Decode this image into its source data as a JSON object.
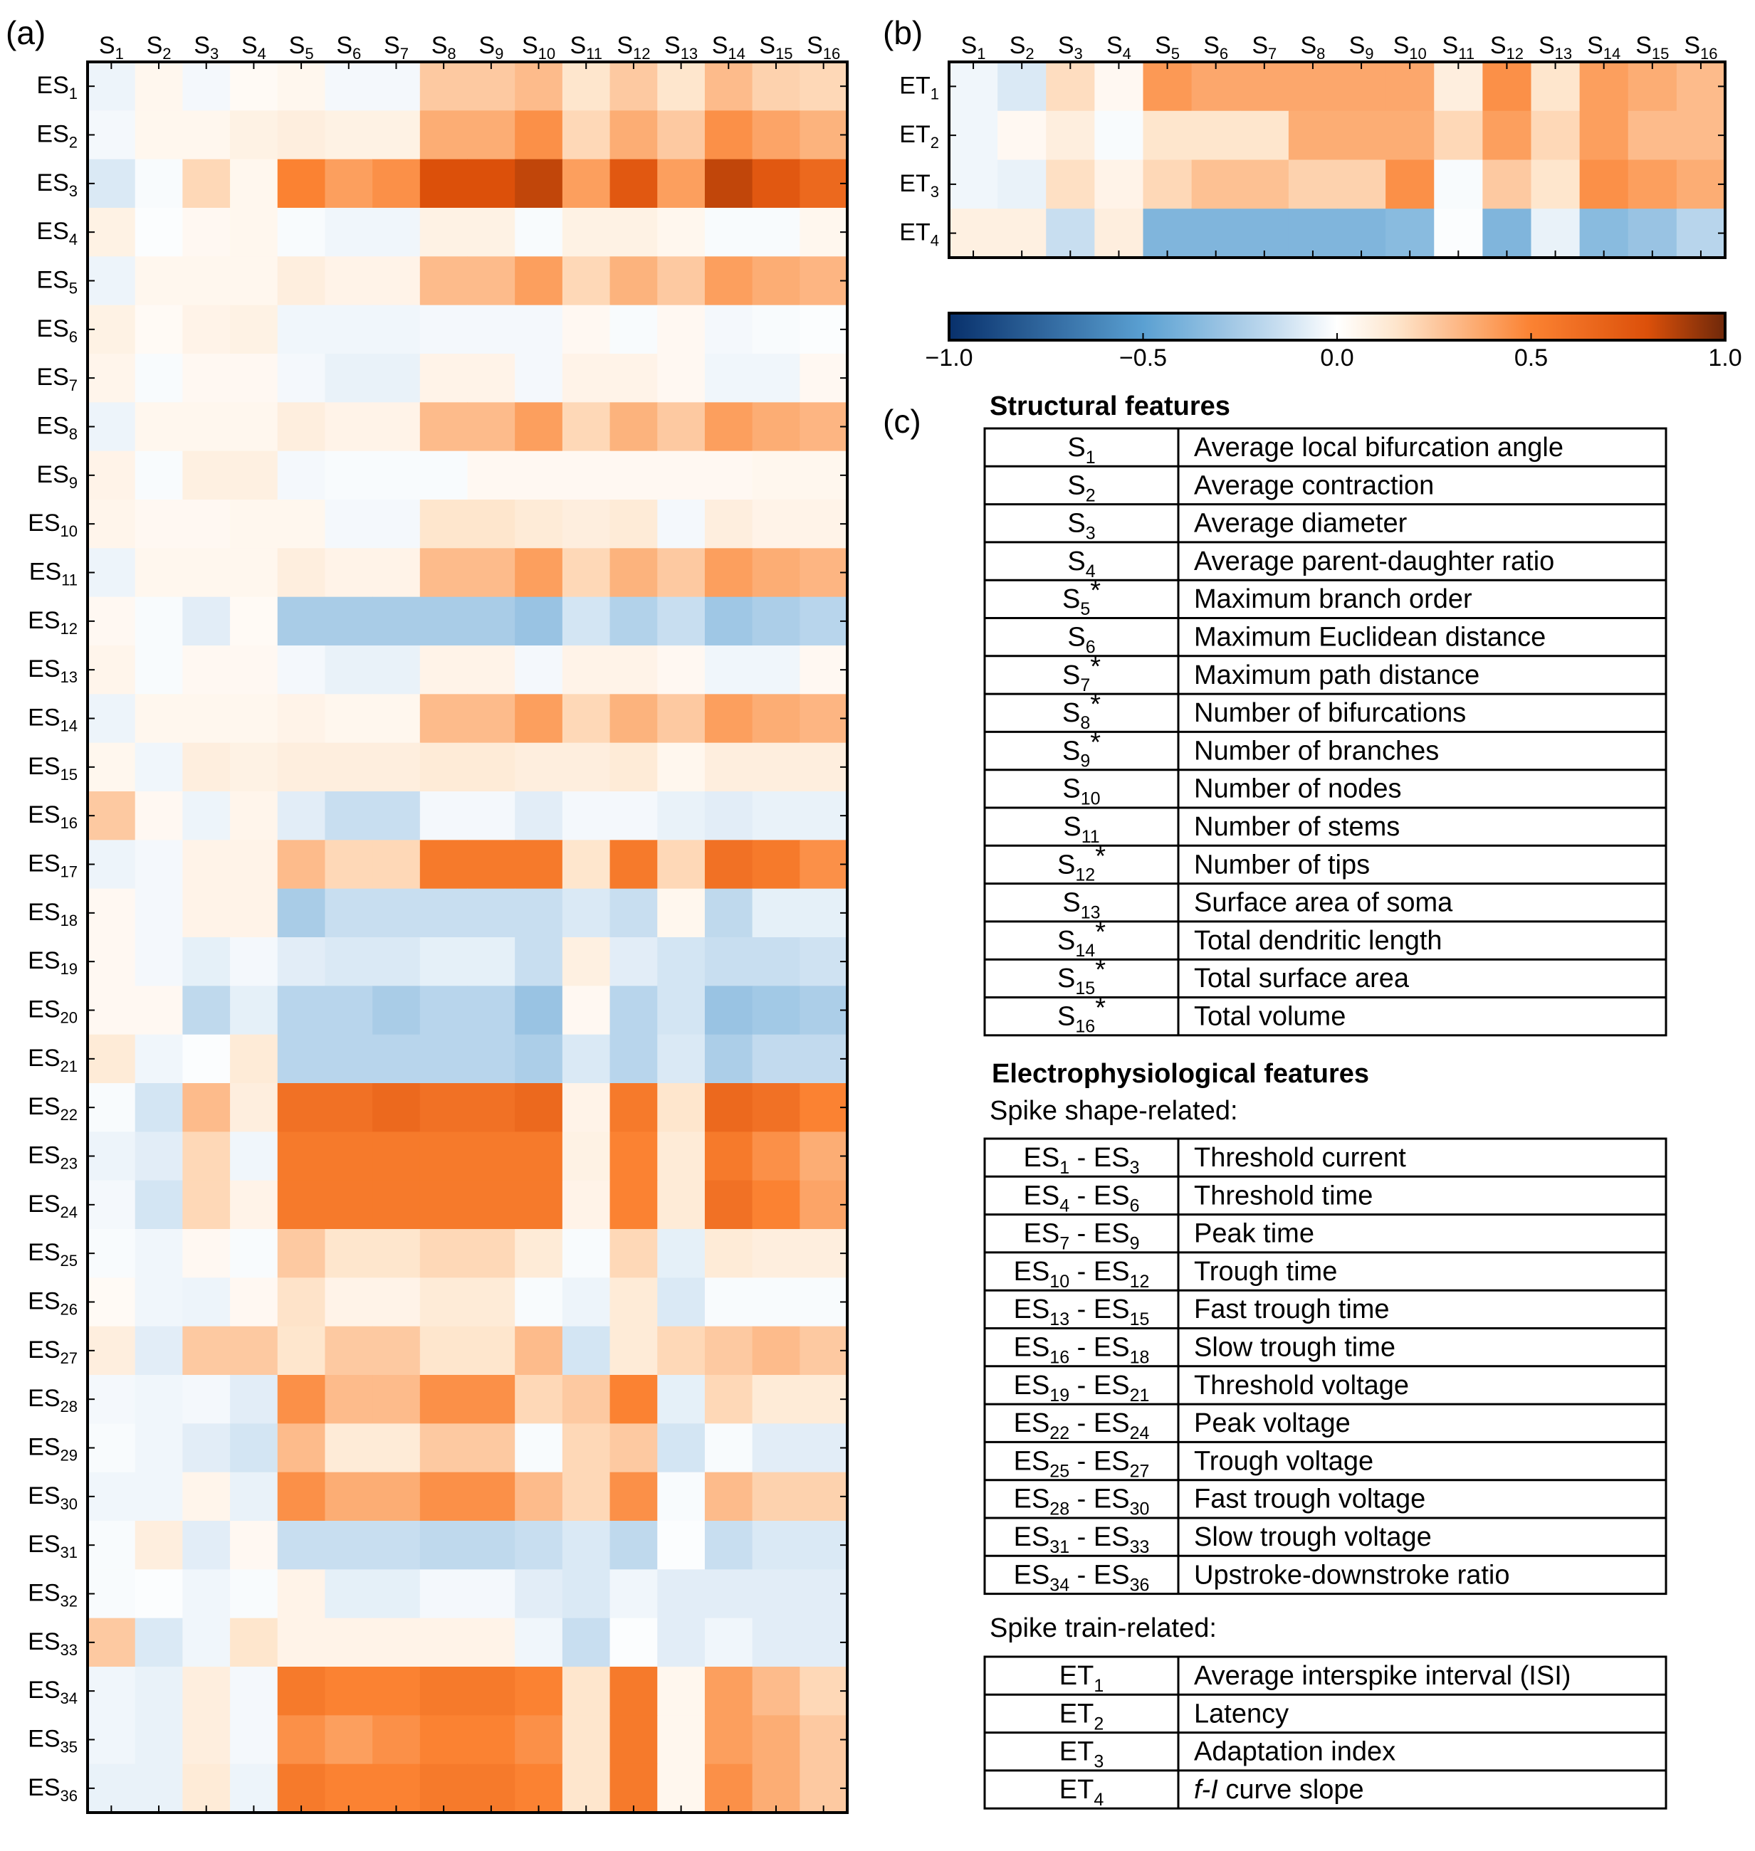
{
  "panels": {
    "a": "(a)",
    "b": "(b)",
    "c": "(c)"
  },
  "chart_data": [
    {
      "type": "heatmap",
      "panel": "(a)",
      "title": "",
      "x_prefix": "S",
      "y_prefix": "ES",
      "x_categories": [
        "S1",
        "S2",
        "S3",
        "S4",
        "S5",
        "S6",
        "S7",
        "S8",
        "S9",
        "S10",
        "S11",
        "S12",
        "S13",
        "S14",
        "S15",
        "S16"
      ],
      "y_categories": [
        "ES1",
        "ES2",
        "ES3",
        "ES4",
        "ES5",
        "ES6",
        "ES7",
        "ES8",
        "ES9",
        "ES10",
        "ES11",
        "ES12",
        "ES13",
        "ES14",
        "ES15",
        "ES16",
        "ES17",
        "ES18",
        "ES19",
        "ES20",
        "ES21",
        "ES22",
        "ES23",
        "ES24",
        "ES25",
        "ES26",
        "ES27",
        "ES28",
        "ES29",
        "ES30",
        "ES31",
        "ES32",
        "ES33",
        "ES34",
        "ES35",
        "ES36"
      ],
      "colormap": "diverging blue-white-orange",
      "value_range": [
        -1.0,
        1.0
      ],
      "values": [
        [
          -0.05,
          0.05,
          -0.03,
          0.03,
          0.05,
          -0.03,
          -0.03,
          0.25,
          0.25,
          0.3,
          0.15,
          0.25,
          0.15,
          0.3,
          0.22,
          0.2
        ],
        [
          -0.03,
          0.05,
          0.05,
          0.08,
          0.1,
          0.08,
          0.08,
          0.35,
          0.35,
          0.45,
          0.2,
          0.35,
          0.25,
          0.45,
          0.38,
          0.33
        ],
        [
          -0.1,
          -0.02,
          0.2,
          0.05,
          0.5,
          0.4,
          0.45,
          0.8,
          0.8,
          0.85,
          0.4,
          0.75,
          0.4,
          0.85,
          0.75,
          0.65
        ],
        [
          0.08,
          -0.01,
          0.04,
          0.05,
          -0.02,
          -0.04,
          -0.04,
          0.08,
          0.08,
          -0.02,
          0.08,
          0.08,
          0.05,
          -0.02,
          -0.02,
          0.05
        ],
        [
          -0.05,
          0.05,
          0.05,
          0.05,
          0.1,
          0.07,
          0.07,
          0.3,
          0.3,
          0.4,
          0.2,
          0.33,
          0.25,
          0.4,
          0.35,
          0.32
        ],
        [
          0.08,
          0.03,
          0.07,
          0.08,
          -0.04,
          -0.04,
          -0.04,
          -0.03,
          -0.03,
          -0.03,
          0.04,
          -0.02,
          0.04,
          -0.03,
          -0.02,
          -0.01
        ],
        [
          0.06,
          -0.02,
          0.04,
          0.04,
          -0.03,
          -0.06,
          -0.06,
          0.07,
          0.07,
          -0.03,
          0.07,
          0.07,
          0.04,
          -0.04,
          -0.04,
          0.04
        ],
        [
          -0.05,
          0.05,
          0.05,
          0.05,
          0.1,
          0.07,
          0.07,
          0.3,
          0.3,
          0.4,
          0.2,
          0.33,
          0.25,
          0.4,
          0.35,
          0.32
        ],
        [
          0.07,
          -0.02,
          0.09,
          0.09,
          -0.03,
          -0.02,
          -0.02,
          -0.02,
          0.04,
          0.04,
          0.04,
          0.04,
          0.04,
          0.04,
          0.05,
          0.05
        ],
        [
          0.06,
          0.04,
          0.04,
          0.05,
          0.05,
          -0.03,
          -0.03,
          0.15,
          0.15,
          0.12,
          0.1,
          0.12,
          -0.03,
          0.1,
          0.07,
          0.07
        ],
        [
          -0.05,
          0.05,
          0.05,
          0.05,
          0.1,
          0.07,
          0.07,
          0.3,
          0.3,
          0.4,
          0.2,
          0.33,
          0.25,
          0.4,
          0.35,
          0.32
        ],
        [
          0.04,
          -0.02,
          -0.08,
          0.03,
          -0.25,
          -0.25,
          -0.25,
          -0.25,
          -0.25,
          -0.3,
          -0.12,
          -0.22,
          -0.15,
          -0.28,
          -0.24,
          -0.2
        ],
        [
          0.06,
          -0.02,
          0.04,
          0.04,
          -0.03,
          -0.06,
          -0.06,
          0.07,
          0.07,
          -0.03,
          0.07,
          0.07,
          0.04,
          -0.04,
          -0.04,
          0.04
        ],
        [
          -0.05,
          0.05,
          0.05,
          0.05,
          0.07,
          0.05,
          0.05,
          0.3,
          0.3,
          0.4,
          0.2,
          0.33,
          0.25,
          0.4,
          0.35,
          0.32
        ],
        [
          0.05,
          -0.04,
          0.1,
          0.08,
          0.1,
          0.1,
          0.1,
          0.12,
          0.12,
          0.1,
          0.1,
          0.12,
          0.05,
          0.1,
          0.1,
          0.1
        ],
        [
          0.25,
          0.04,
          -0.05,
          0.06,
          -0.08,
          -0.15,
          -0.15,
          -0.03,
          -0.03,
          -0.08,
          -0.03,
          -0.03,
          -0.06,
          -0.08,
          -0.06,
          -0.06
        ],
        [
          -0.05,
          -0.03,
          0.07,
          0.07,
          0.3,
          0.2,
          0.2,
          0.55,
          0.55,
          0.55,
          0.15,
          0.55,
          0.2,
          0.6,
          0.55,
          0.45
        ],
        [
          0.04,
          -0.03,
          0.07,
          0.07,
          -0.25,
          -0.15,
          -0.15,
          -0.15,
          -0.15,
          -0.15,
          -0.1,
          -0.15,
          0.05,
          -0.18,
          -0.07,
          -0.07
        ],
        [
          0.04,
          -0.03,
          -0.07,
          -0.03,
          -0.08,
          -0.1,
          -0.1,
          -0.07,
          -0.07,
          -0.15,
          0.09,
          -0.08,
          -0.12,
          -0.15,
          -0.15,
          -0.13
        ],
        [
          0.04,
          0.04,
          -0.18,
          -0.07,
          -0.2,
          -0.2,
          -0.25,
          -0.2,
          -0.2,
          -0.3,
          0.04,
          -0.2,
          -0.12,
          -0.3,
          -0.27,
          -0.24
        ],
        [
          0.12,
          -0.04,
          -0.01,
          0.12,
          -0.2,
          -0.2,
          -0.2,
          -0.2,
          -0.2,
          -0.24,
          -0.1,
          -0.2,
          -0.1,
          -0.24,
          -0.17,
          -0.17
        ],
        [
          -0.02,
          -0.12,
          0.3,
          0.1,
          0.6,
          0.6,
          0.65,
          0.6,
          0.6,
          0.65,
          0.07,
          0.55,
          0.15,
          0.65,
          0.6,
          0.5
        ],
        [
          -0.05,
          -0.08,
          0.2,
          -0.04,
          0.55,
          0.55,
          0.55,
          0.55,
          0.55,
          0.55,
          0.08,
          0.5,
          0.12,
          0.55,
          0.45,
          0.35
        ],
        [
          -0.03,
          -0.12,
          0.2,
          0.07,
          0.55,
          0.55,
          0.55,
          0.55,
          0.55,
          0.55,
          0.07,
          0.5,
          0.12,
          0.6,
          0.5,
          0.38
        ],
        [
          -0.02,
          -0.04,
          0.04,
          -0.02,
          0.25,
          0.15,
          0.15,
          0.2,
          0.2,
          0.12,
          -0.02,
          0.2,
          -0.07,
          0.12,
          0.1,
          0.1
        ],
        [
          0.03,
          -0.04,
          -0.05,
          0.04,
          0.16,
          0.07,
          0.07,
          0.12,
          0.12,
          -0.02,
          -0.05,
          0.12,
          -0.1,
          -0.02,
          -0.02,
          -0.02
        ],
        [
          0.1,
          -0.08,
          0.25,
          0.25,
          0.15,
          0.25,
          0.25,
          0.15,
          0.15,
          0.3,
          -0.12,
          0.12,
          0.2,
          0.25,
          0.3,
          0.25
        ],
        [
          -0.03,
          -0.04,
          -0.03,
          -0.08,
          0.45,
          0.3,
          0.3,
          0.45,
          0.45,
          0.2,
          0.25,
          0.5,
          -0.07,
          0.2,
          0.12,
          0.12
        ],
        [
          -0.02,
          -0.04,
          -0.08,
          -0.12,
          0.3,
          0.12,
          0.12,
          0.25,
          0.25,
          -0.02,
          0.2,
          0.25,
          -0.12,
          -0.02,
          -0.08,
          -0.08
        ],
        [
          -0.04,
          -0.04,
          0.06,
          -0.06,
          0.45,
          0.35,
          0.35,
          0.45,
          0.45,
          0.3,
          0.2,
          0.45,
          -0.02,
          0.3,
          0.22,
          0.22
        ],
        [
          -0.02,
          0.1,
          -0.08,
          0.04,
          -0.15,
          -0.15,
          -0.15,
          -0.18,
          -0.18,
          -0.15,
          -0.1,
          -0.18,
          -0.01,
          -0.15,
          -0.1,
          -0.1
        ],
        [
          -0.02,
          -0.01,
          -0.04,
          -0.02,
          0.07,
          -0.07,
          -0.07,
          -0.03,
          -0.03,
          -0.08,
          -0.1,
          -0.04,
          -0.08,
          -0.08,
          -0.08,
          -0.08
        ],
        [
          0.25,
          -0.1,
          -0.04,
          0.15,
          0.07,
          0.07,
          0.07,
          0.07,
          0.07,
          -0.04,
          -0.15,
          -0.01,
          -0.08,
          -0.04,
          -0.08,
          -0.08
        ],
        [
          -0.04,
          -0.06,
          0.1,
          -0.03,
          0.55,
          0.5,
          0.5,
          0.55,
          0.55,
          0.5,
          0.15,
          0.55,
          0.05,
          0.4,
          0.3,
          0.2
        ],
        [
          -0.04,
          -0.06,
          0.1,
          -0.03,
          0.45,
          0.4,
          0.45,
          0.5,
          0.5,
          0.45,
          0.15,
          0.55,
          0.05,
          0.4,
          0.35,
          0.25
        ],
        [
          -0.06,
          -0.06,
          0.12,
          -0.05,
          0.55,
          0.5,
          0.5,
          0.55,
          0.55,
          0.5,
          0.15,
          0.55,
          0.05,
          0.45,
          0.35,
          0.25
        ]
      ]
    },
    {
      "type": "heatmap",
      "panel": "(b)",
      "title": "",
      "x_prefix": "S",
      "y_prefix": "ET",
      "x_categories": [
        "S1",
        "S2",
        "S3",
        "S4",
        "S5",
        "S6",
        "S7",
        "S8",
        "S9",
        "S10",
        "S11",
        "S12",
        "S13",
        "S14",
        "S15",
        "S16"
      ],
      "y_categories": [
        "ET1",
        "ET2",
        "ET3",
        "ET4"
      ],
      "colormap": "diverging blue-white-orange",
      "value_range": [
        -1.0,
        1.0
      ],
      "values": [
        [
          -0.04,
          -0.1,
          0.18,
          0.04,
          0.42,
          0.37,
          0.37,
          0.37,
          0.37,
          0.37,
          0.1,
          0.45,
          0.15,
          0.4,
          0.35,
          0.3
        ],
        [
          -0.04,
          0.04,
          0.1,
          -0.02,
          0.15,
          0.15,
          0.15,
          0.35,
          0.35,
          0.35,
          0.2,
          0.4,
          0.2,
          0.4,
          0.3,
          0.3
        ],
        [
          -0.04,
          -0.06,
          0.17,
          0.07,
          0.2,
          0.28,
          0.28,
          0.22,
          0.22,
          0.45,
          -0.02,
          0.25,
          0.15,
          0.45,
          0.4,
          0.35
        ],
        [
          0.09,
          0.09,
          -0.15,
          0.1,
          -0.38,
          -0.38,
          -0.38,
          -0.38,
          -0.38,
          -0.35,
          -0.01,
          -0.38,
          -0.06,
          -0.35,
          -0.3,
          -0.2
        ]
      ]
    }
  ],
  "colorbar": {
    "ticks": [
      "−1.0",
      "−0.5",
      "0.0",
      "0.5",
      "1.0"
    ]
  },
  "structural": {
    "title": "Structural features",
    "rows": [
      {
        "code": "S",
        "idx": "1",
        "star": "",
        "desc": "Average local bifurcation angle"
      },
      {
        "code": "S",
        "idx": "2",
        "star": "",
        "desc": "Average contraction"
      },
      {
        "code": "S",
        "idx": "3",
        "star": "",
        "desc": "Average diameter"
      },
      {
        "code": "S",
        "idx": "4",
        "star": "",
        "desc": "Average parent-daughter ratio"
      },
      {
        "code": "S",
        "idx": "5",
        "star": "*",
        "desc": "Maximum branch order"
      },
      {
        "code": "S",
        "idx": "6",
        "star": "",
        "desc": "Maximum Euclidean distance"
      },
      {
        "code": "S",
        "idx": "7",
        "star": "*",
        "desc": "Maximum path distance"
      },
      {
        "code": "S",
        "idx": "8",
        "star": "*",
        "desc": "Number of bifurcations"
      },
      {
        "code": "S",
        "idx": "9",
        "star": "*",
        "desc": "Number of branches"
      },
      {
        "code": "S",
        "idx": "10",
        "star": "",
        "desc": "Number of nodes"
      },
      {
        "code": "S",
        "idx": "11",
        "star": "",
        "desc": "Number of stems"
      },
      {
        "code": "S",
        "idx": "12",
        "star": "*",
        "desc": "Number of tips"
      },
      {
        "code": "S",
        "idx": "13",
        "star": "",
        "desc": "Surface area of soma"
      },
      {
        "code": "S",
        "idx": "14",
        "star": "*",
        "desc": "Total dendritic length"
      },
      {
        "code": "S",
        "idx": "15",
        "star": "*",
        "desc": "Total surface area"
      },
      {
        "code": "S",
        "idx": "16",
        "star": "*",
        "desc": "Total volume"
      }
    ]
  },
  "electro": {
    "title": "Electrophysiological features",
    "spike_shape_label": "Spike shape-related:",
    "spike_shape_rows": [
      {
        "a": "1",
        "b": "3",
        "desc": "Threshold current"
      },
      {
        "a": "4",
        "b": "6",
        "desc": "Threshold time"
      },
      {
        "a": "7",
        "b": "9",
        "desc": "Peak time"
      },
      {
        "a": "10",
        "b": "12",
        "desc": "Trough time"
      },
      {
        "a": "13",
        "b": "15",
        "desc": "Fast trough time"
      },
      {
        "a": "16",
        "b": "18",
        "desc": "Slow trough time"
      },
      {
        "a": "19",
        "b": "21",
        "desc": "Threshold voltage"
      },
      {
        "a": "22",
        "b": "24",
        "desc": "Peak voltage"
      },
      {
        "a": "25",
        "b": "27",
        "desc": "Trough voltage"
      },
      {
        "a": "28",
        "b": "30",
        "desc": "Fast trough voltage"
      },
      {
        "a": "31",
        "b": "33",
        "desc": "Slow trough voltage"
      },
      {
        "a": "34",
        "b": "36",
        "desc": "Upstroke-downstroke ratio"
      }
    ],
    "spike_train_label": "Spike train-related:",
    "spike_train_rows": [
      {
        "idx": "1",
        "desc": "Average interspike interval (ISI)",
        "italic": "",
        "rest": ""
      },
      {
        "idx": "2",
        "desc": "Latency",
        "italic": "",
        "rest": ""
      },
      {
        "idx": "3",
        "desc": "Adaptation index",
        "italic": "",
        "rest": ""
      },
      {
        "idx": "4",
        "desc": "",
        "italic": "f-I",
        "rest": " curve slope"
      }
    ]
  }
}
